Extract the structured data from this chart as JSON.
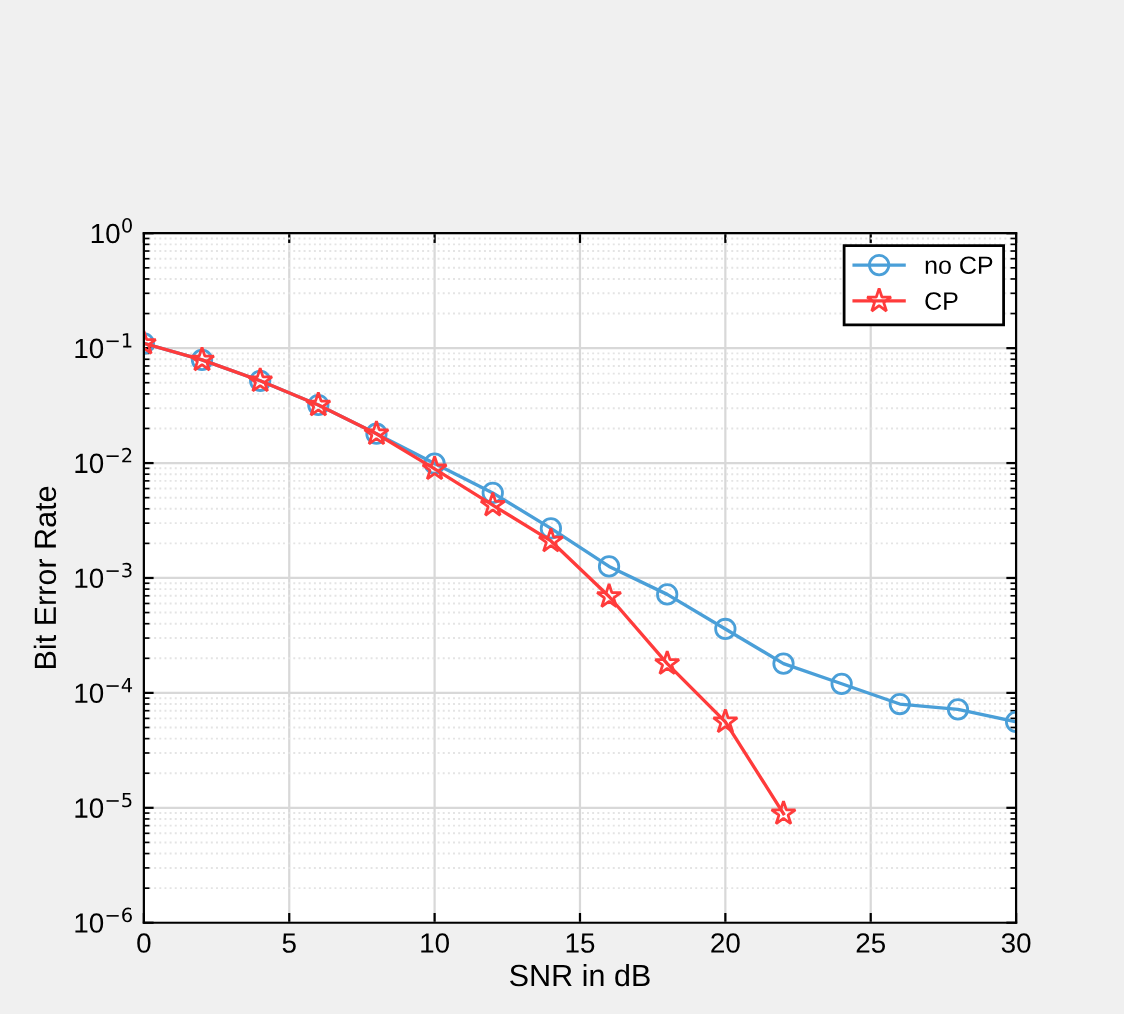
{
  "chart_data": {
    "type": "line",
    "xlabel": "SNR in dB",
    "ylabel": "Bit Error Rate",
    "x": [
      0,
      2,
      4,
      6,
      8,
      10,
      12,
      14,
      16,
      18,
      20,
      22,
      24,
      26,
      28,
      30
    ],
    "series": [
      {
        "name": "no CP",
        "color": "#4a9fd8",
        "marker": "circle",
        "values": [
          0.11,
          0.079,
          0.052,
          0.032,
          0.018,
          0.0099,
          0.0055,
          0.0027,
          0.00126,
          0.00072,
          0.00036,
          0.00018,
          0.00012,
          8e-05,
          7.2e-05,
          5.6e-05
        ]
      },
      {
        "name": "CP",
        "color": "#ff3b3b",
        "marker": "star",
        "values": [
          0.11,
          0.079,
          0.052,
          0.032,
          0.018,
          0.0089,
          0.0043,
          0.0021,
          0.00069,
          0.00018,
          5.6e-05,
          8.9e-06,
          null,
          null,
          null,
          null
        ]
      }
    ],
    "log": "y",
    "grid": true,
    "legend": "top right",
    "line_style": "solid",
    "xlim": [
      0,
      30
    ],
    "xticks": [
      0,
      5,
      10,
      15,
      20,
      25,
      30
    ],
    "ylim": [
      1e-06,
      1
    ],
    "yticks": [
      {
        "value": 1e-06,
        "label": "10$^{−6}$"
      },
      {
        "value": 1e-05,
        "label": "10$^{−5}$"
      },
      {
        "value": 0.0001,
        "label": "10$^{−4}$"
      },
      {
        "value": 0.001,
        "label": "10$^{−3}$"
      },
      {
        "value": 0.01,
        "label": "10$^{−2}$"
      },
      {
        "value": 0.1,
        "label": "10$^{−1}$"
      },
      {
        "value": 1,
        "label": "10$^{0}$"
      }
    ]
  }
}
